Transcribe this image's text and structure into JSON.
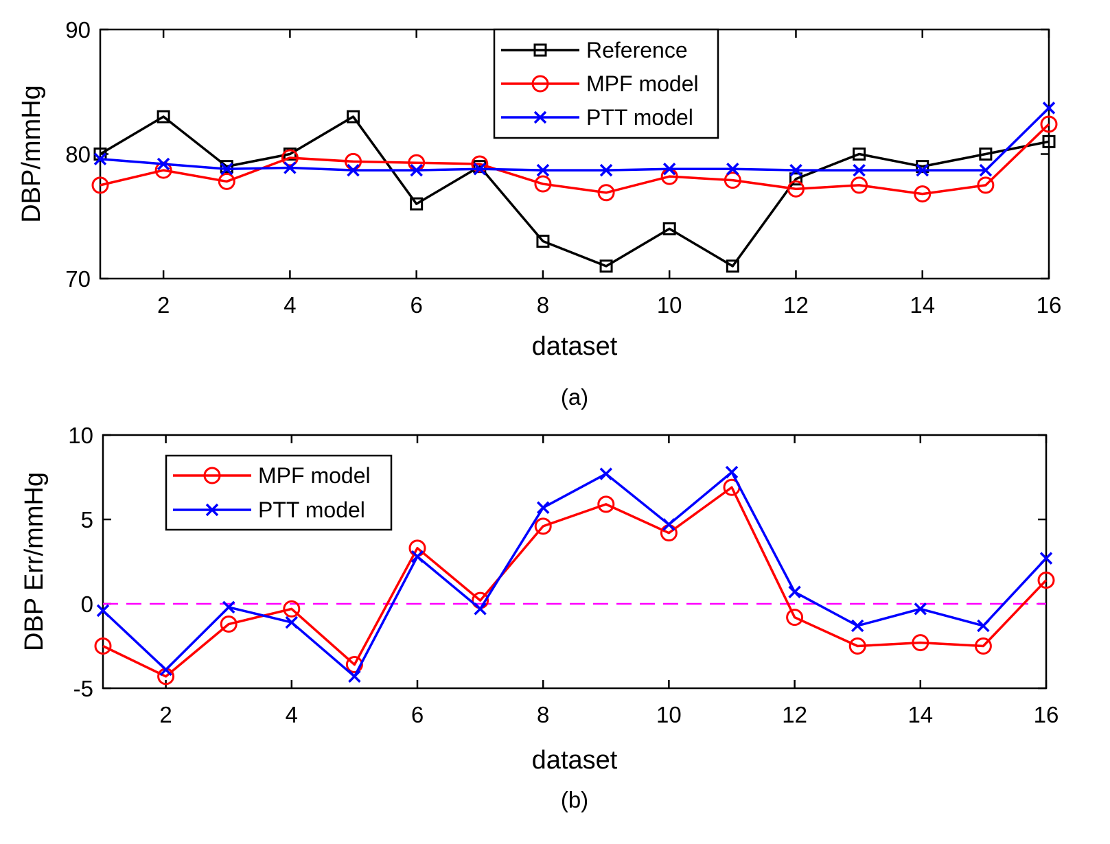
{
  "chart_data": [
    {
      "id": "a",
      "type": "line",
      "caption": "(a)",
      "xlabel": "dataset",
      "ylabel": "DBP/mmHg",
      "xlim": [
        1,
        16
      ],
      "ylim": [
        70,
        90
      ],
      "xticks": [
        2,
        4,
        6,
        8,
        10,
        12,
        14,
        16
      ],
      "yticks": [
        70,
        80,
        90
      ],
      "x": [
        1,
        2,
        3,
        4,
        5,
        6,
        7,
        8,
        9,
        10,
        11,
        12,
        13,
        14,
        15,
        16
      ],
      "legend_position": "top-center",
      "series": [
        {
          "name": "Reference",
          "color": "#000000",
          "marker": "square",
          "values": [
            80,
            83,
            79,
            80,
            83,
            76,
            79,
            73,
            71,
            74,
            71,
            78,
            80,
            79,
            80,
            81
          ]
        },
        {
          "name": "MPF model",
          "color": "#ff0000",
          "marker": "circle",
          "values": [
            77.5,
            78.7,
            77.8,
            79.7,
            79.4,
            79.3,
            79.2,
            77.6,
            76.9,
            78.2,
            77.9,
            77.2,
            77.5,
            76.8,
            77.5,
            82.4
          ]
        },
        {
          "name": "PTT model",
          "color": "#0000ff",
          "marker": "x",
          "values": [
            79.6,
            79.2,
            78.8,
            78.9,
            78.7,
            78.7,
            78.8,
            78.7,
            78.7,
            78.8,
            78.8,
            78.7,
            78.7,
            78.7,
            78.7,
            83.7
          ]
        }
      ]
    },
    {
      "id": "b",
      "type": "line",
      "caption": "(b)",
      "xlabel": "dataset",
      "ylabel": "DBP Err/mmHg",
      "xlim": [
        1,
        16
      ],
      "ylim": [
        -5,
        10
      ],
      "xticks": [
        2,
        4,
        6,
        8,
        10,
        12,
        14,
        16
      ],
      "yticks": [
        -5,
        0,
        5,
        10
      ],
      "x": [
        1,
        2,
        3,
        4,
        5,
        6,
        7,
        8,
        9,
        10,
        11,
        12,
        13,
        14,
        15,
        16
      ],
      "reference_line": {
        "y": 0,
        "color": "#ff00ff",
        "style": "dashed"
      },
      "legend_position": "top-left",
      "series": [
        {
          "name": "MPF model",
          "color": "#ff0000",
          "marker": "circle",
          "values": [
            -2.5,
            -4.3,
            -1.2,
            -0.3,
            -3.6,
            3.3,
            0.2,
            4.6,
            5.9,
            4.2,
            6.9,
            -0.8,
            -2.5,
            -2.3,
            -2.5,
            1.4
          ]
        },
        {
          "name": "PTT  model",
          "color": "#0000ff",
          "marker": "x",
          "values": [
            -0.4,
            -3.9,
            -0.2,
            -1.1,
            -4.3,
            2.8,
            -0.3,
            5.7,
            7.7,
            4.7,
            7.8,
            0.7,
            -1.3,
            -0.3,
            -1.3,
            2.7
          ]
        }
      ]
    }
  ]
}
